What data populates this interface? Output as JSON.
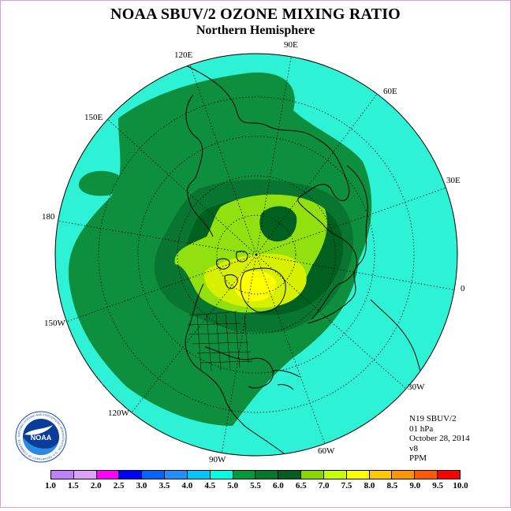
{
  "title": "NOAA SBUV/2 OZONE MIXING RATIO",
  "subtitle": "Northern Hemisphere",
  "longitude_labels": {
    "e90": "90E",
    "e120": "120E",
    "e60": "60E",
    "e150": "150E",
    "e30": "30E",
    "e180": "180",
    "e0": "0",
    "w150": "150W",
    "w30": "30W",
    "w120": "120W",
    "w60": "60W",
    "w90": "90W"
  },
  "info": {
    "instrument": "N19 SBUV/2",
    "level": "01 hPa",
    "date": "October 28, 2014",
    "version": "v8",
    "units": "PPM"
  },
  "logo": {
    "text": "NOAA",
    "ring_text": "NATIONAL OCEANIC AND ATMOSPHERIC ADMINISTRATION · U.S. DEPARTMENT OF COMMERCE"
  },
  "colorbar": {
    "ticks": [
      "1.0",
      "1.5",
      "2.0",
      "2.5",
      "3.0",
      "3.5",
      "4.0",
      "4.5",
      "5.0",
      "5.5",
      "6.0",
      "6.5",
      "7.0",
      "7.5",
      "8.0",
      "8.5",
      "9.0",
      "9.5",
      "10.0"
    ],
    "colors": [
      "#c080ff",
      "#e0a0ff",
      "#ff00ff",
      "#0000ff",
      "#0066ff",
      "#1e90ff",
      "#00c8ff",
      "#00ffe0",
      "#009a3a",
      "#007a28",
      "#005e1e",
      "#88d800",
      "#c8ff00",
      "#ffff00",
      "#ffc800",
      "#ff9600",
      "#ff5a00",
      "#ff0000",
      "#8b5a2b"
    ]
  },
  "map_colors": {
    "background": "#2ef2d6",
    "level_5": "#0d8f3d",
    "level_55": "#087530",
    "level_6": "#006020",
    "level_65": "#92e010",
    "level_7": "#d6f000",
    "level_75": "#ffff00"
  }
}
